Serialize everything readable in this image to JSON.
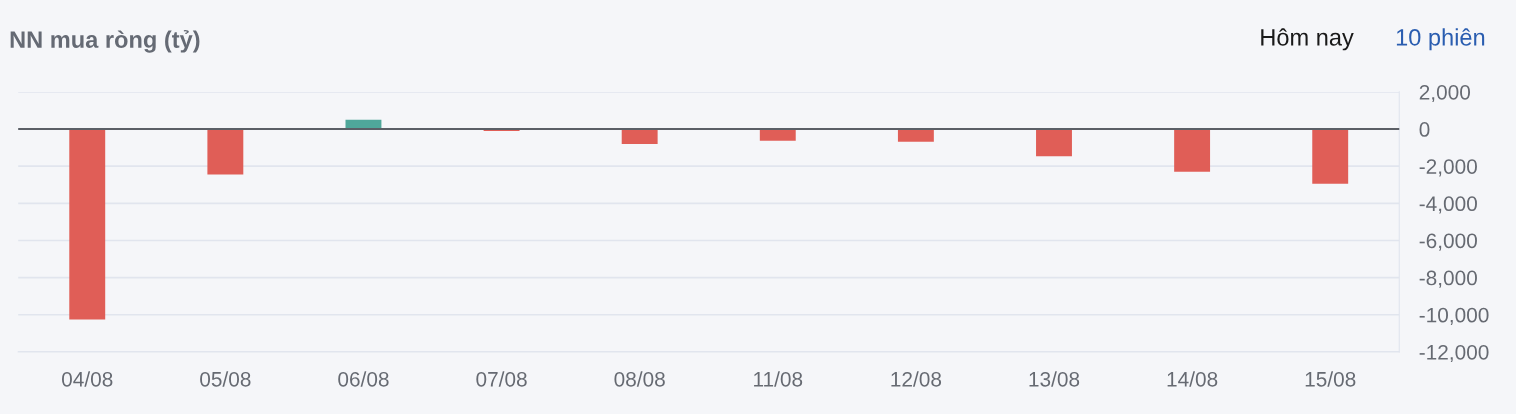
{
  "chart_data": {
    "type": "bar",
    "title": "NN mua ròng (tỷ)",
    "annotations": [
      "Hôm nay",
      "10 phiên"
    ],
    "categories": [
      "04/08",
      "05/08",
      "06/08",
      "07/08",
      "08/08",
      "11/08",
      "12/08",
      "13/08",
      "14/08",
      "15/08"
    ],
    "values": [
      -10250,
      -2450,
      500,
      -100,
      -810,
      -630,
      -680,
      -1470,
      -2300,
      -2940
    ],
    "colors": [
      "#e05e57",
      "#e05e57",
      "#4fa79a",
      "#e05e57",
      "#e05e57",
      "#e05e57",
      "#e05e57",
      "#e05e57",
      "#e05e57",
      "#e05e57"
    ],
    "ylim": [
      -12000,
      2000
    ],
    "yticks": [
      {
        "value": -12000,
        "label": "-12,000"
      },
      {
        "value": -10000,
        "label": "-10,000"
      },
      {
        "value": -8000,
        "label": "-8,000"
      },
      {
        "value": -6000,
        "label": "-6,000"
      },
      {
        "value": -4000,
        "label": "-4,000"
      },
      {
        "value": -2000,
        "label": "-2,000"
      },
      {
        "value": 0,
        "label": "0"
      },
      {
        "value": 2000,
        "label": "2,000"
      }
    ],
    "ref_lines": [
      {
        "axis": "y",
        "value": 0,
        "color": "#5b5f66"
      }
    ],
    "grid": "y"
  }
}
